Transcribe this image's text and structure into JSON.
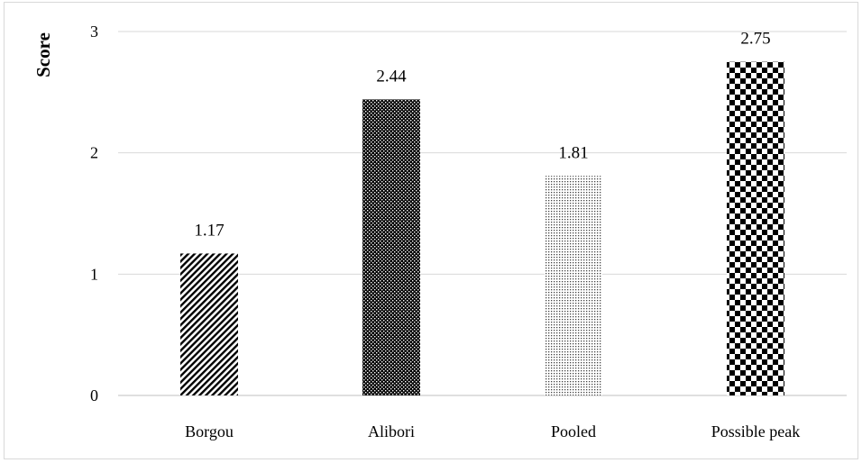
{
  "chart_data": {
    "type": "bar",
    "title": "",
    "xlabel": "",
    "ylabel": "Score",
    "categories": [
      "Borgou",
      "Alibori",
      "Pooled",
      "Possible peak"
    ],
    "values": [
      1.17,
      2.44,
      1.81,
      2.75
    ],
    "data_labels": [
      "1.17",
      "2.44",
      "1.81",
      "2.75"
    ],
    "ylim": [
      0,
      3
    ],
    "yticks": [
      0,
      1,
      2,
      3
    ],
    "grid": true,
    "legend": "none",
    "bar_patterns": [
      "diagonal-stripes",
      "dense-dots",
      "fine-dots",
      "checkerboard"
    ],
    "colors": {
      "bar_ink": "#000000",
      "grid": "#d9d9d9",
      "axis": "#bfbfbf"
    }
  }
}
